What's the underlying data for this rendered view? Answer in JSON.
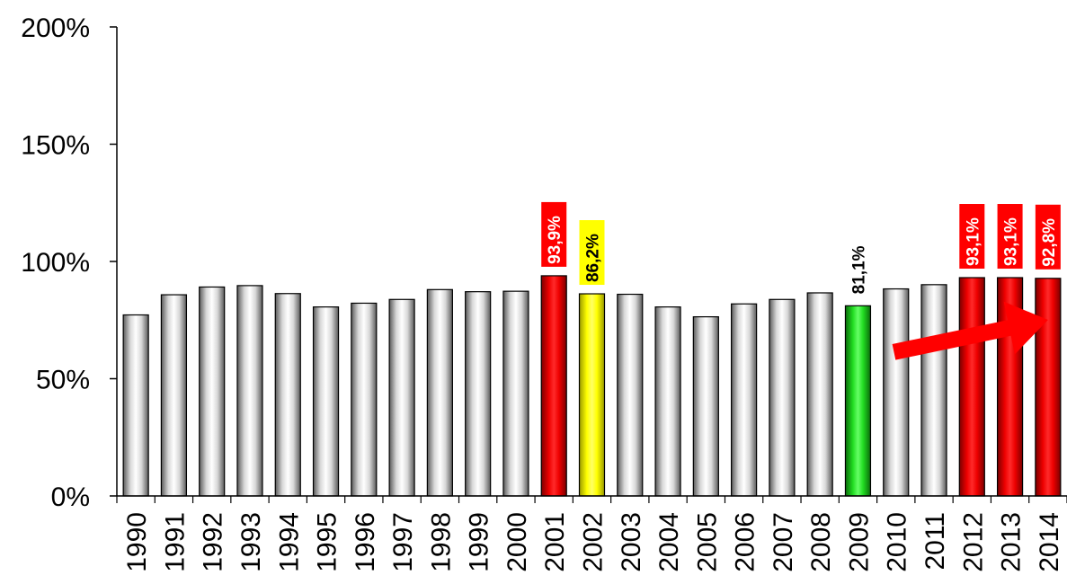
{
  "chart_data": {
    "type": "bar",
    "title": "",
    "xlabel": "",
    "ylabel": "",
    "ylim": [
      0,
      200
    ],
    "yticks": [
      "0%",
      "50%",
      "100%",
      "150%",
      "200%"
    ],
    "ytick_values": [
      0,
      50,
      100,
      150,
      200
    ],
    "grid": false,
    "legend": "none",
    "categories": [
      "1990",
      "1991",
      "1992",
      "1993",
      "1994",
      "1995",
      "1996",
      "1997",
      "1998",
      "1999",
      "2000",
      "2001",
      "2002",
      "2003",
      "2004",
      "2005",
      "2006",
      "2007",
      "2008",
      "2009",
      "2010",
      "2011",
      "2012",
      "2013",
      "2014"
    ],
    "values": [
      77.2,
      85.8,
      89.1,
      89.7,
      86.3,
      80.6,
      82.2,
      83.8,
      88.0,
      87.1,
      87.3,
      93.9,
      86.2,
      86.0,
      80.6,
      76.4,
      81.9,
      83.8,
      86.6,
      81.1,
      88.3,
      90.1,
      93.1,
      93.1,
      92.8
    ],
    "bar_colors": [
      "silver",
      "silver",
      "silver",
      "silver",
      "silver",
      "silver",
      "silver",
      "silver",
      "silver",
      "silver",
      "silver",
      "red",
      "yellow",
      "silver",
      "silver",
      "silver",
      "silver",
      "silver",
      "silver",
      "green",
      "silver",
      "silver",
      "red",
      "red",
      "red"
    ],
    "data_labels": [
      {
        "category": "2001",
        "text": "93,9%",
        "box": "#ff0000",
        "color": "#ffffff"
      },
      {
        "category": "2002",
        "text": "86,2%",
        "box": "#ffff00",
        "color": "#000000"
      },
      {
        "category": "2009",
        "text": "81,1%",
        "box": "none",
        "color": "#000000"
      },
      {
        "category": "2012",
        "text": "93,1%",
        "box": "#ff0000",
        "color": "#ffffff"
      },
      {
        "category": "2013",
        "text": "93,1%",
        "box": "#ff0000",
        "color": "#ffffff"
      },
      {
        "category": "2014",
        "text": "92,8%",
        "box": "#ff0000",
        "color": "#ffffff"
      }
    ],
    "annotation": {
      "type": "trend-arrow",
      "color": "#ff0000",
      "from": {
        "category": "2009",
        "value": 56
      },
      "to": {
        "category": "2014",
        "value": 82
      }
    }
  },
  "colors": {
    "silver": "#e6e6e6",
    "red": "#ee0000",
    "yellow": "#ffff00",
    "green": "#22dd22",
    "axis": "#000000"
  }
}
